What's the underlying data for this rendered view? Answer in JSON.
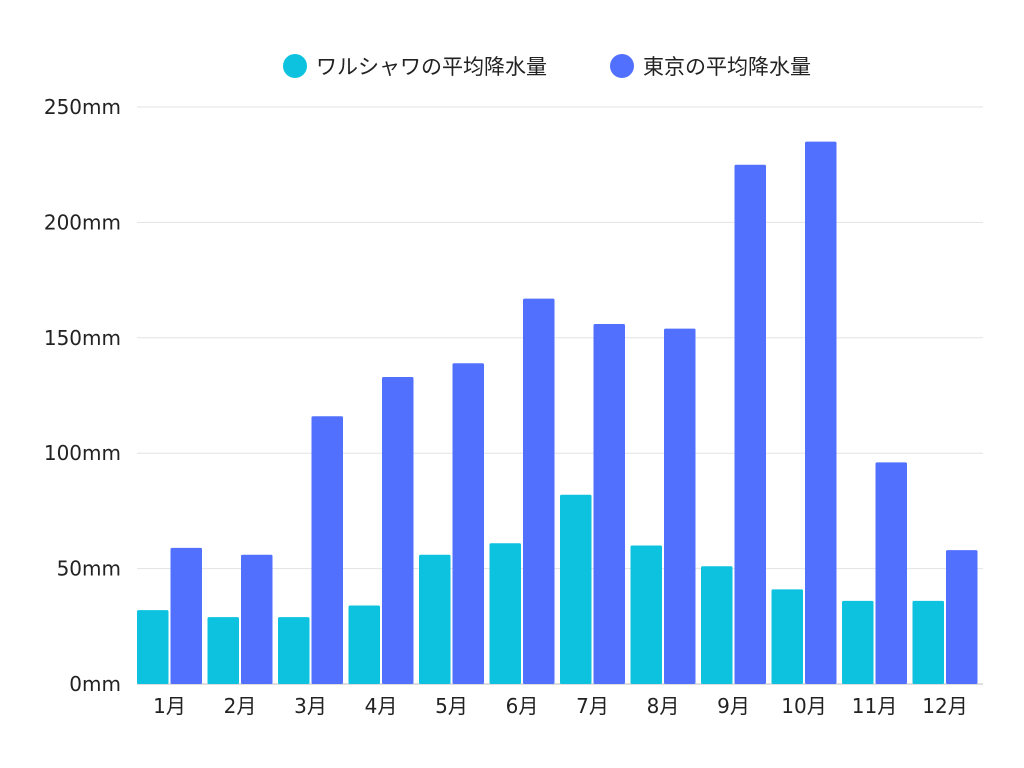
{
  "chart_data": {
    "type": "bar",
    "categories": [
      "1月",
      "2月",
      "3月",
      "4月",
      "5月",
      "6月",
      "7月",
      "8月",
      "9月",
      "10月",
      "11月",
      "12月"
    ],
    "series": [
      {
        "name": "ワルシャワの平均降水量",
        "color": "#0cc2de",
        "values": [
          32,
          29,
          29,
          34,
          56,
          61,
          82,
          60,
          51,
          41,
          36,
          36
        ]
      },
      {
        "name": "東京の平均降水量",
        "color": "#5170fe",
        "values": [
          59,
          56,
          116,
          133,
          139,
          167,
          156,
          154,
          225,
          235,
          96,
          58
        ]
      }
    ],
    "y_ticks": [
      "0mm",
      "50mm",
      "100mm",
      "150mm",
      "200mm",
      "250mm"
    ],
    "ylim": [
      0,
      250
    ],
    "grid": true,
    "legend_position": "top-center"
  }
}
